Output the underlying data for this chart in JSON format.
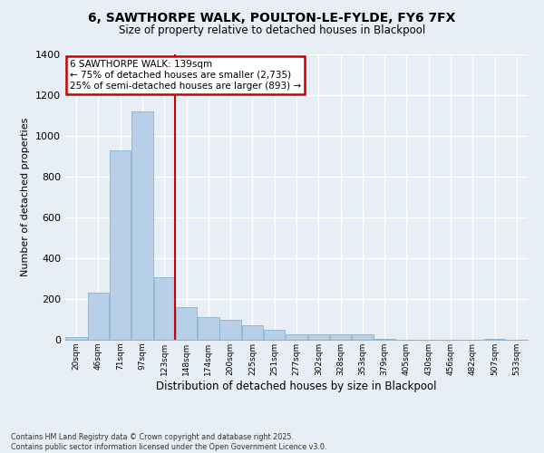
{
  "title_line1": "6, SAWTHORPE WALK, POULTON-LE-FYLDE, FY6 7FX",
  "title_line2": "Size of property relative to detached houses in Blackpool",
  "xlabel": "Distribution of detached houses by size in Blackpool",
  "ylabel": "Number of detached properties",
  "bin_labels": [
    "20sqm",
    "46sqm",
    "71sqm",
    "97sqm",
    "123sqm",
    "148sqm",
    "174sqm",
    "200sqm",
    "225sqm",
    "251sqm",
    "277sqm",
    "302sqm",
    "328sqm",
    "353sqm",
    "379sqm",
    "405sqm",
    "430sqm",
    "456sqm",
    "482sqm",
    "507sqm",
    "533sqm"
  ],
  "bar_values": [
    12,
    230,
    930,
    1120,
    305,
    160,
    110,
    100,
    70,
    50,
    25,
    25,
    25,
    25,
    5,
    0,
    0,
    0,
    0,
    5,
    0
  ],
  "bar_color": "#b8cfe8",
  "bar_edge_color": "#7aaac8",
  "vline_x_index": 4.5,
  "vline_color": "#cc0000",
  "box_edge_color": "#cc0000",
  "bg_color": "#e8eef5",
  "grid_color": "#ffffff",
  "annotation_line1": "6 SAWTHORPE WALK: 139sqm",
  "annotation_line2": "← 75% of detached houses are smaller (2,735)",
  "annotation_line3": "25% of semi-detached houses are larger (893) →",
  "footer_line1": "Contains HM Land Registry data © Crown copyright and database right 2025.",
  "footer_line2": "Contains public sector information licensed under the Open Government Licence v3.0.",
  "ylim": [
    0,
    1400
  ],
  "yticks": [
    0,
    200,
    400,
    600,
    800,
    1000,
    1200,
    1400
  ]
}
